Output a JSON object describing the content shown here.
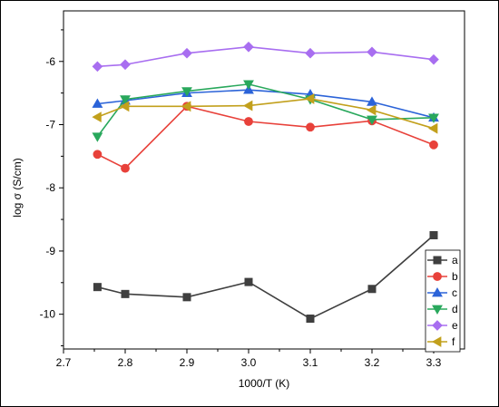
{
  "chart_data": {
    "type": "line",
    "xlabel": "1000/T (K)",
    "ylabel": "log σ (S/cm)",
    "xlim": [
      2.7,
      3.35
    ],
    "ylim": [
      -10.55,
      -5.2
    ],
    "xticks": [
      2.7,
      2.8,
      2.9,
      3.0,
      3.1,
      3.2,
      3.3
    ],
    "xtick_labels": [
      "2.7",
      "2.8",
      "2.9",
      "3.0",
      "3.1",
      "3.2",
      "3.3"
    ],
    "yticks": [
      -10,
      -9,
      -8,
      -7,
      -6
    ],
    "ytick_labels": [
      "-10",
      "-9",
      "-8",
      "-7",
      "-6"
    ],
    "x": [
      2.755,
      2.8,
      2.9,
      3.0,
      3.1,
      3.2,
      3.3
    ],
    "legend_position": "bottom-right",
    "series": [
      {
        "name": "a",
        "color": "#3f3f3f",
        "marker": "square",
        "values": [
          -9.57,
          -9.68,
          -9.73,
          -9.49,
          -10.07,
          -9.6,
          -8.75
        ]
      },
      {
        "name": "b",
        "color": "#e8413a",
        "marker": "circle",
        "values": [
          -7.47,
          -7.69,
          -6.71,
          -6.95,
          -7.04,
          -6.94,
          -7.32
        ]
      },
      {
        "name": "c",
        "color": "#2b63d8",
        "marker": "triangle-up",
        "values": [
          -6.67,
          -6.62,
          -6.5,
          -6.45,
          -6.52,
          -6.64,
          -6.89
        ]
      },
      {
        "name": "d",
        "color": "#29a85c",
        "marker": "triangle-down",
        "values": [
          -7.19,
          -6.6,
          -6.47,
          -6.36,
          -6.6,
          -6.92,
          -6.89
        ]
      },
      {
        "name": "e",
        "color": "#a86ef0",
        "marker": "diamond",
        "values": [
          -6.08,
          -6.05,
          -5.87,
          -5.77,
          -5.87,
          -5.85,
          -5.97
        ]
      },
      {
        "name": "f",
        "color": "#c2a01c",
        "marker": "triangle-left",
        "values": [
          -6.88,
          -6.71,
          -6.71,
          -6.7,
          -6.59,
          -6.77,
          -7.06
        ]
      }
    ]
  }
}
